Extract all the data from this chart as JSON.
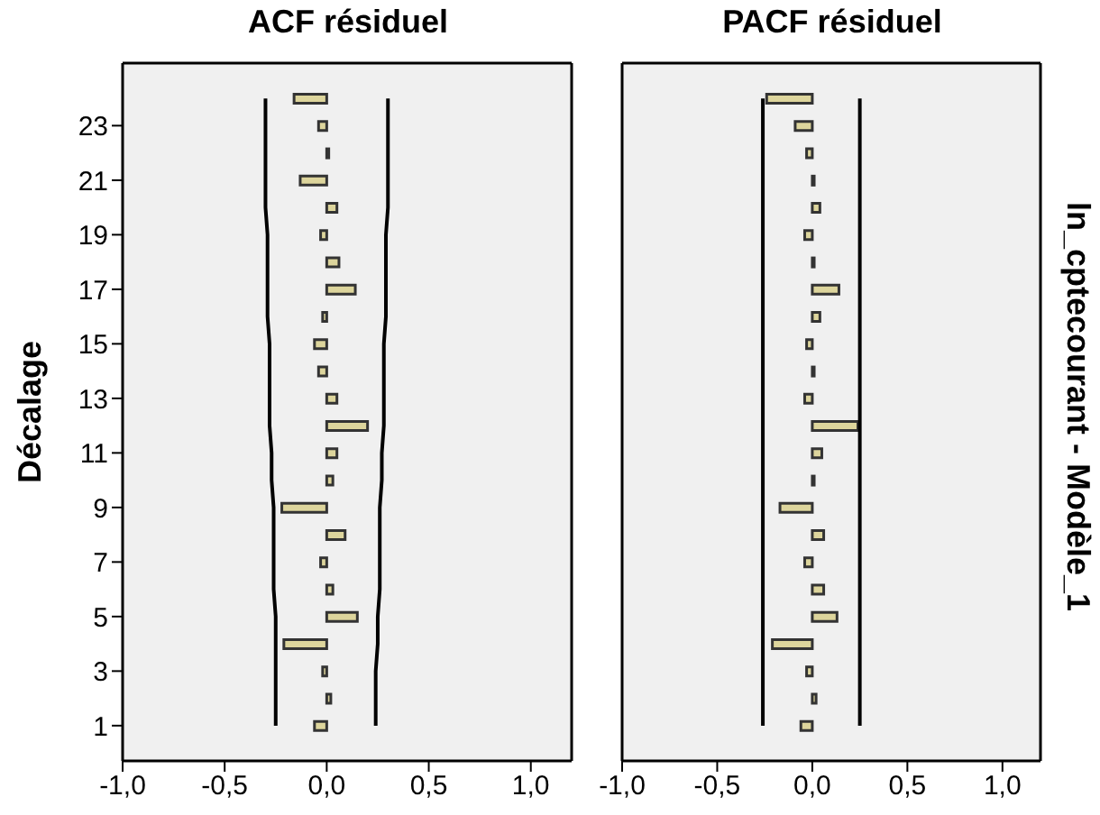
{
  "chart_data": [
    {
      "type": "bar",
      "orientation": "horizontal",
      "title": "ACF résiduel",
      "ylabel": "Décalage",
      "categories": [
        null,
        "23",
        null,
        "21",
        null,
        "19",
        null,
        "17",
        null,
        "15",
        null,
        "13",
        null,
        "11",
        null,
        "9",
        null,
        "7",
        null,
        "5",
        null,
        "3",
        null,
        "1"
      ],
      "series": [
        {
          "color": "#ddd59c",
          "values": [
            -0.16,
            -0.04,
            0.01,
            -0.13,
            0.05,
            -0.03,
            0.06,
            0.14,
            -0.02,
            -0.06,
            -0.04,
            0.05,
            0.2,
            0.05,
            0.03,
            -0.22,
            0.09,
            -0.03,
            0.03,
            0.15,
            -0.21,
            -0.02,
            0.02,
            -0.06
          ]
        },
        {
          "type": "line",
          "color": "#000000",
          "values": [
            -0.3,
            -0.3,
            -0.3,
            -0.3,
            -0.3,
            -0.29,
            -0.29,
            -0.29,
            -0.29,
            -0.28,
            -0.28,
            -0.28,
            -0.28,
            -0.27,
            -0.27,
            -0.26,
            -0.26,
            -0.26,
            -0.26,
            -0.25,
            -0.25,
            -0.25,
            -0.25,
            -0.25
          ]
        },
        {
          "type": "line",
          "color": "#000000",
          "values": [
            0.3,
            0.3,
            0.3,
            0.3,
            0.3,
            0.29,
            0.29,
            0.29,
            0.29,
            0.28,
            0.28,
            0.28,
            0.28,
            0.27,
            0.27,
            0.26,
            0.26,
            0.26,
            0.26,
            0.25,
            0.25,
            0.24,
            0.24,
            0.24
          ]
        }
      ],
      "xlim": [
        -1,
        1.2
      ],
      "xticks": [
        {
          "value": -1,
          "label": "-1,0"
        },
        {
          "value": -0.5,
          "label": "-0,5"
        },
        {
          "value": 0,
          "label": "0,0"
        },
        {
          "value": 0.5,
          "label": "0,5"
        },
        {
          "value": 1,
          "label": "1,0"
        }
      ],
      "grid": false,
      "legend": false,
      "marker": "none"
    },
    {
      "type": "bar",
      "orientation": "horizontal",
      "title": "PACF résiduel",
      "y2label": "ln_cptecourant - Modèle_1",
      "tick_labels": "x",
      "categories": [
        null,
        "23",
        null,
        "21",
        null,
        "19",
        null,
        "17",
        null,
        "15",
        null,
        "13",
        null,
        "11",
        null,
        "9",
        null,
        "7",
        null,
        "5",
        null,
        "3",
        null,
        "1"
      ],
      "series": [
        {
          "color": "#ddd59c",
          "values": [
            -0.24,
            -0.09,
            -0.03,
            0.01,
            0.04,
            -0.04,
            0.01,
            0.14,
            0.04,
            -0.03,
            0.01,
            -0.04,
            0.24,
            0.05,
            0.01,
            -0.17,
            0.06,
            -0.04,
            0.06,
            0.13,
            -0.21,
            -0.03,
            0.02,
            -0.06
          ]
        },
        {
          "type": "line",
          "color": "#000000",
          "values": [
            -0.26,
            -0.26,
            -0.26,
            -0.26,
            -0.26,
            -0.26,
            -0.26,
            -0.26,
            -0.26,
            -0.26,
            -0.26,
            -0.26,
            -0.26,
            -0.26,
            -0.26,
            -0.26,
            -0.26,
            -0.26,
            -0.26,
            -0.26,
            -0.26,
            -0.26,
            -0.26,
            -0.26
          ]
        },
        {
          "type": "line",
          "color": "#000000",
          "values": [
            0.25,
            0.25,
            0.25,
            0.25,
            0.25,
            0.25,
            0.25,
            0.25,
            0.25,
            0.25,
            0.25,
            0.25,
            0.25,
            0.25,
            0.25,
            0.25,
            0.25,
            0.25,
            0.25,
            0.25,
            0.25,
            0.25,
            0.25,
            0.25
          ]
        }
      ],
      "xlim": [
        -1,
        1.2
      ],
      "xticks": [
        {
          "value": -1,
          "label": "-1,0"
        },
        {
          "value": -0.5,
          "label": "-0,5"
        },
        {
          "value": 0,
          "label": "0,0"
        },
        {
          "value": 0.5,
          "label": "0,5"
        },
        {
          "value": 1,
          "label": "1,0"
        }
      ],
      "grid": false,
      "legend": false,
      "marker": "none"
    }
  ]
}
